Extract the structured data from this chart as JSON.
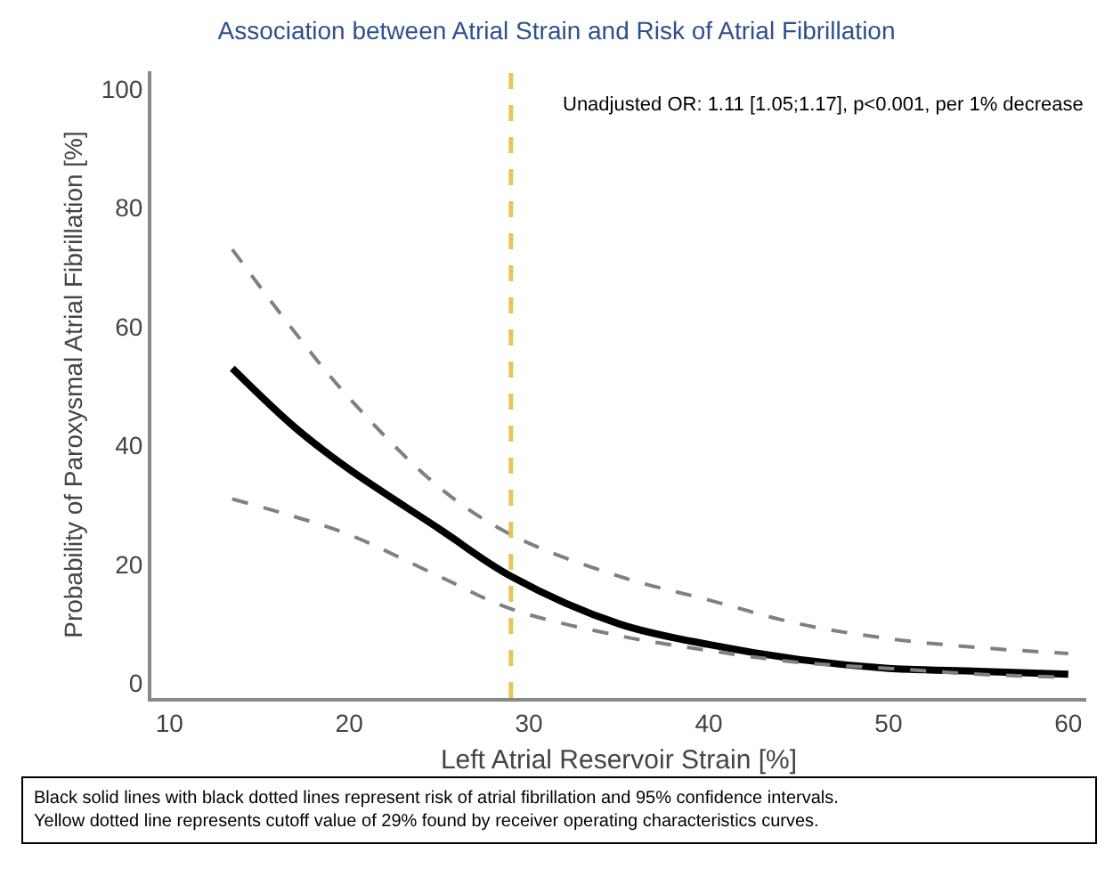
{
  "chart_data": {
    "type": "line",
    "title": "Association between Atrial Strain and Risk of Atrial Fibrillation",
    "xlabel": "Left Atrial Reservoir Strain [%]",
    "ylabel": "Probability of Paroxysmal Atrial Fibrillation [%]",
    "xlim": [
      9,
      61
    ],
    "xticks": [
      10,
      20,
      30,
      40,
      50,
      60
    ],
    "ylim": [
      -2.5,
      103
    ],
    "yticks": [
      0,
      20,
      40,
      60,
      80,
      100
    ],
    "grid": false,
    "legend": false,
    "marker": "none",
    "series": [
      {
        "color": "#808080",
        "line_style": "dashed",
        "x": [
          13.5,
          17,
          20,
          25,
          29,
          35,
          40,
          45,
          50,
          55,
          60
        ],
        "values": [
          73,
          59,
          48,
          33,
          25,
          18,
          14,
          10,
          7.5,
          6,
          5
        ]
      },
      {
        "color": "#000000",
        "line_style": "solid",
        "x": [
          13.5,
          17,
          20,
          25,
          29,
          35,
          40,
          45,
          50,
          55,
          60
        ],
        "values": [
          53,
          43,
          36,
          26,
          18,
          10,
          6.5,
          4,
          2.5,
          2,
          1.5
        ]
      },
      {
        "color": "#808080",
        "line_style": "dashed",
        "x": [
          13.5,
          17,
          20,
          25,
          29,
          35,
          40,
          45,
          50,
          55,
          60
        ],
        "values": [
          31,
          28,
          25,
          18,
          12.5,
          8,
          5.5,
          3.5,
          2.5,
          1.5,
          1
        ]
      }
    ],
    "ref_lines": [
      {
        "axis": "x",
        "value": 29,
        "color": "#e6c45a",
        "line_style": "dashed"
      }
    ],
    "annotations": [
      "Unadjusted OR: 1.11 [1.05;1.17], p<0.001, per 1% decrease",
      "Black solid lines with black dotted lines represent risk of atrial fibrillation and 95% confidence intervals.\nYellow dotted line represents cutoff value of 29% found by receiver operating characteristics curves."
    ]
  }
}
